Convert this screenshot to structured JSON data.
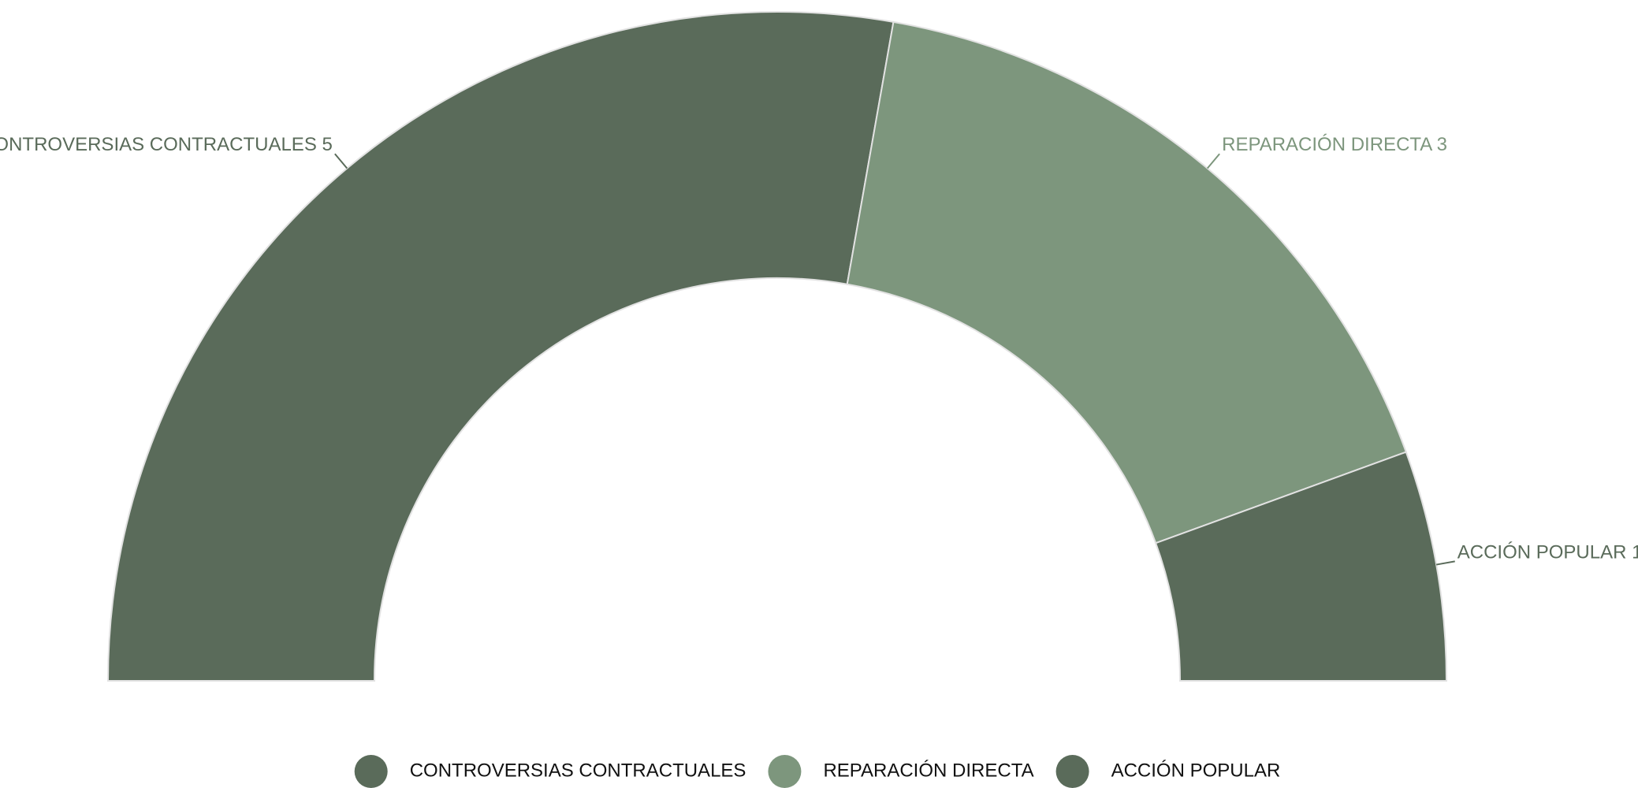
{
  "chart_data": {
    "type": "pie",
    "half": true,
    "donut": true,
    "categories": [
      "CONTROVERSIAS CONTRACTUALES",
      "REPARACIÓN DIRECTA",
      "ACCIÓN POPULAR"
    ],
    "values": [
      5,
      3,
      1
    ],
    "colors": [
      "#5a6b5a",
      "#7d967d",
      "#5a6b5a"
    ],
    "legend": "bottom"
  }
}
